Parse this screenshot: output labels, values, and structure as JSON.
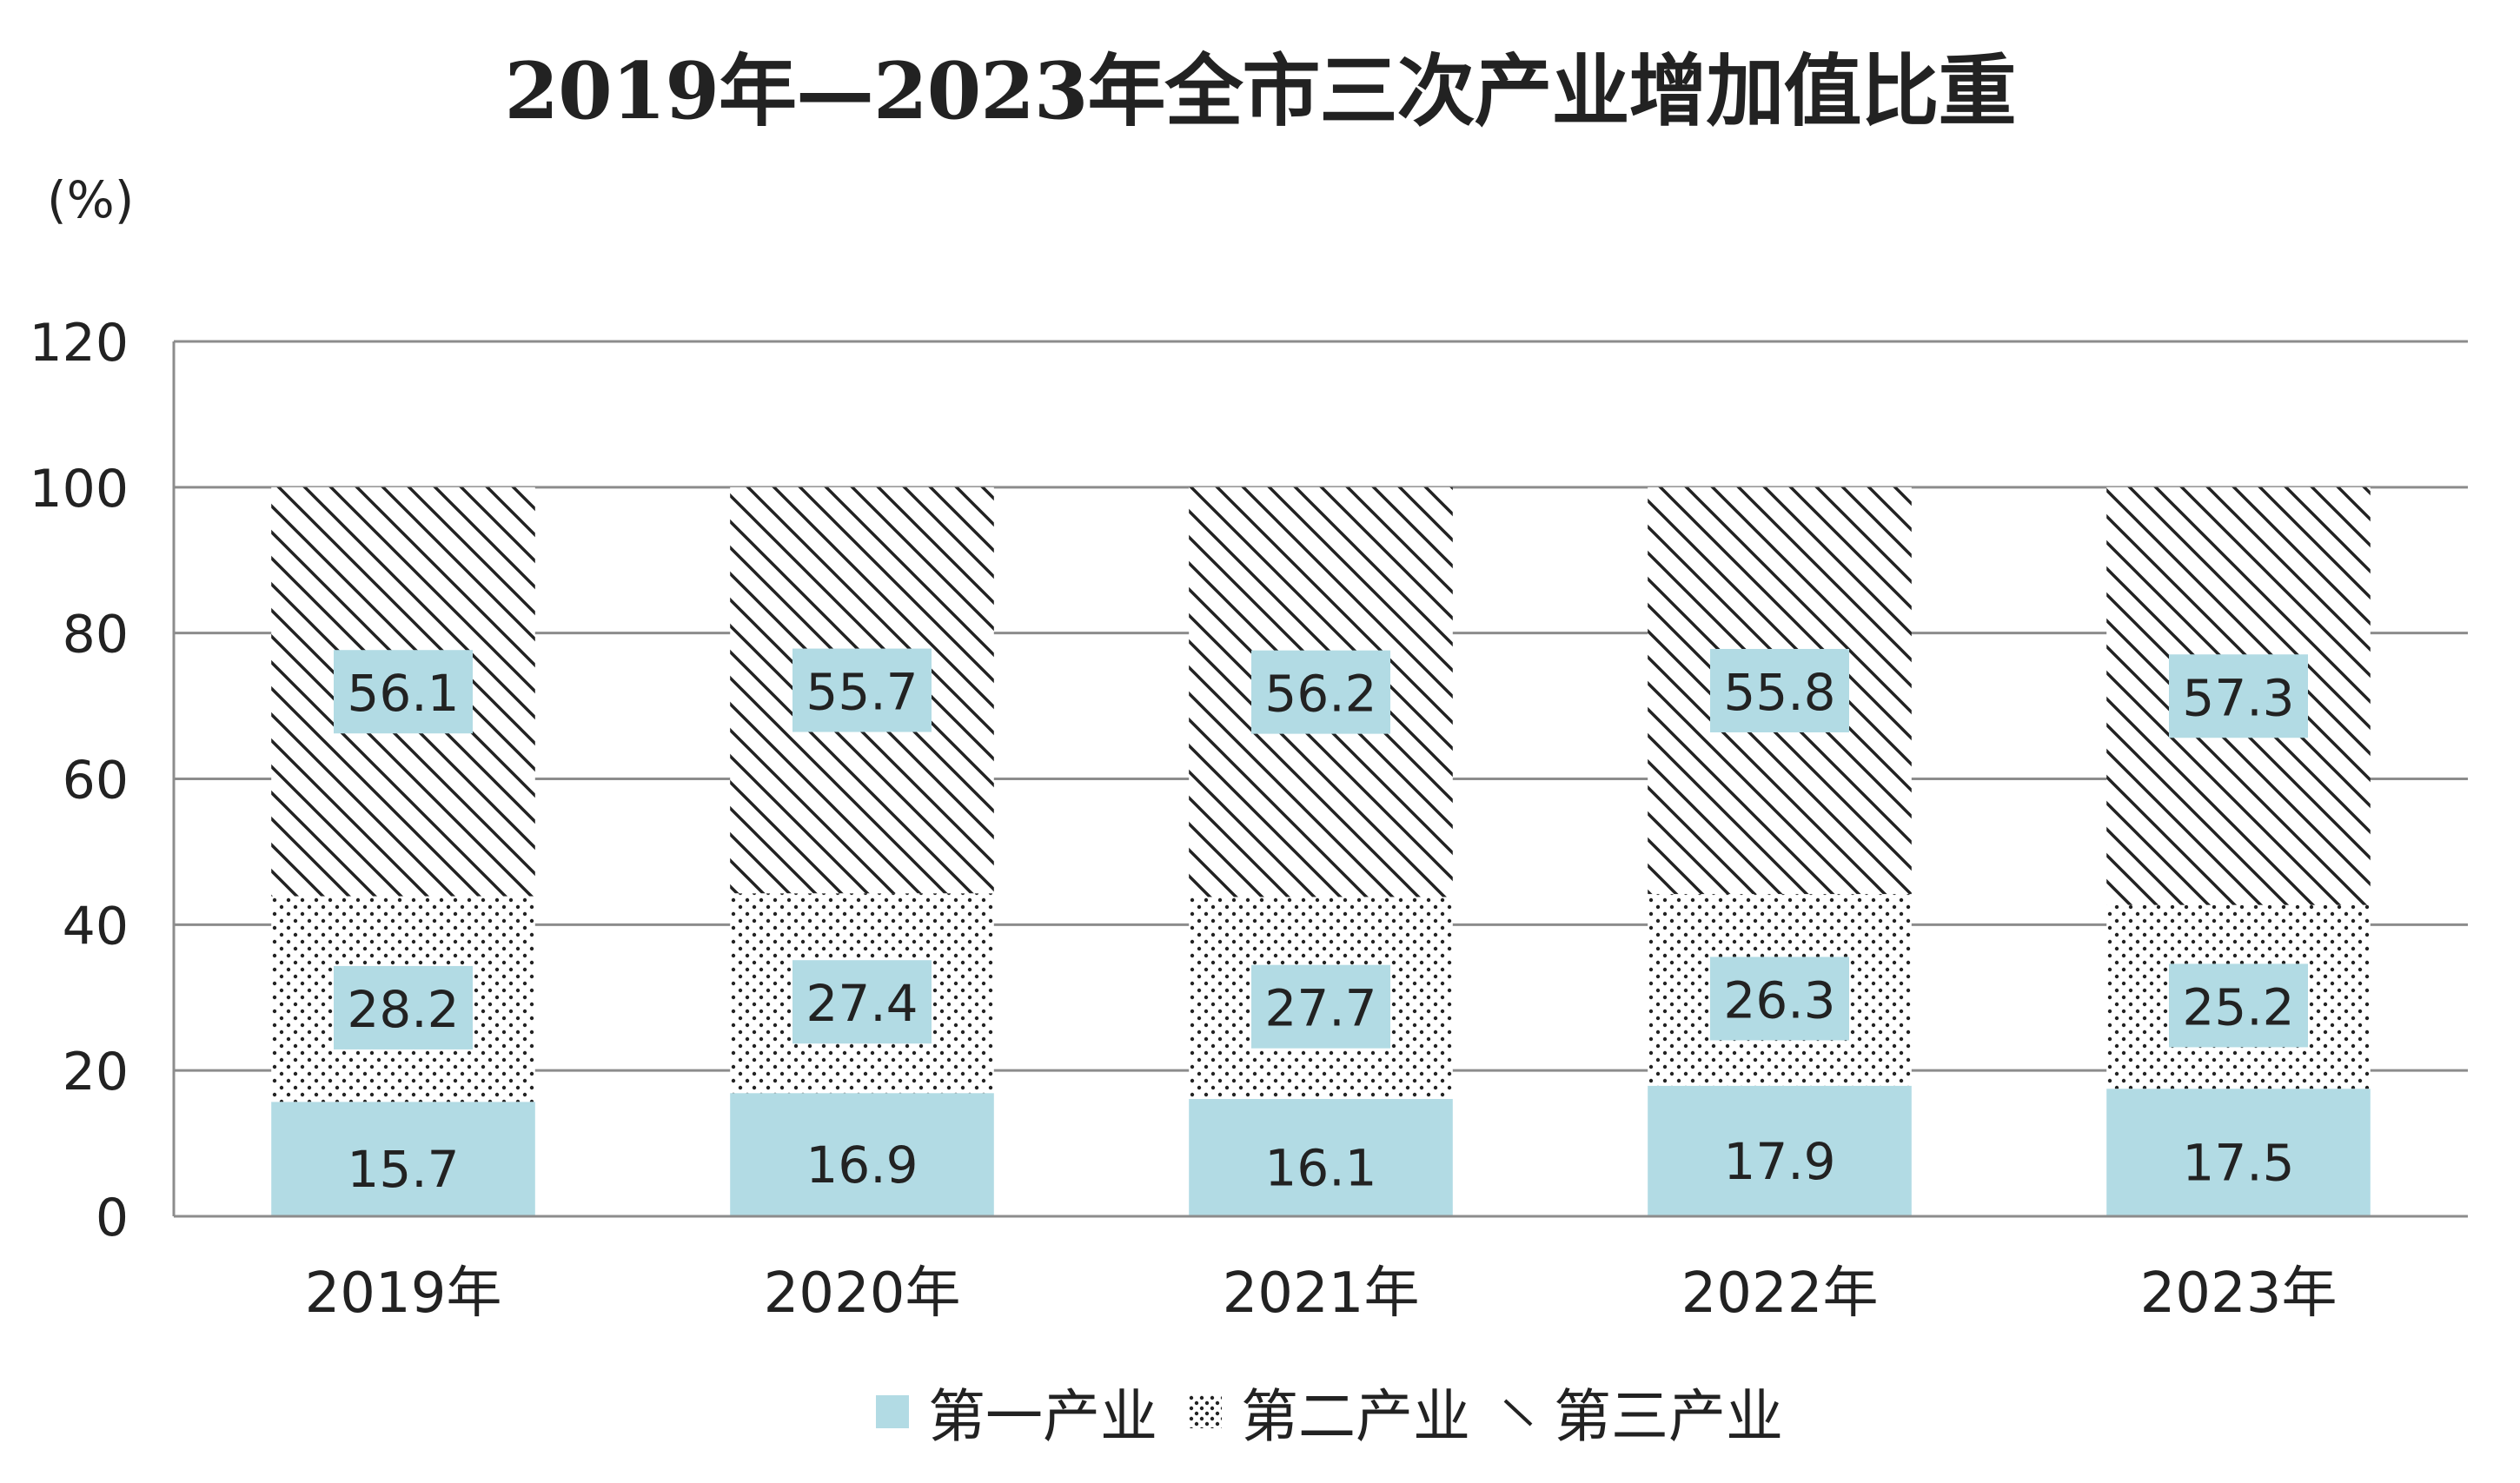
{
  "chart_data": {
    "type": "bar",
    "stacked": true,
    "title": "2019年—2023年全市三次产业增加值比重",
    "y_unit": "(%)",
    "categories": [
      "2019年",
      "2020年",
      "2021年",
      "2022年",
      "2023年"
    ],
    "series": [
      {
        "name": "第一产业",
        "values": [
          15.7,
          16.9,
          16.1,
          17.9,
          17.5
        ],
        "fill": "solid",
        "color": "#b2dbe4"
      },
      {
        "name": "第二产业",
        "values": [
          28.2,
          27.4,
          27.7,
          26.3,
          25.2
        ],
        "fill": "dots",
        "color": "#222222"
      },
      {
        "name": "第三产业",
        "values": [
          56.1,
          55.7,
          56.2,
          55.8,
          57.3
        ],
        "fill": "hatch",
        "color": "#222222"
      }
    ],
    "ylim": [
      0,
      120
    ],
    "yticks": [
      0,
      20,
      40,
      60,
      80,
      100,
      120
    ],
    "grid": true,
    "legend_position": "bottom",
    "label_box_color": "#b2dbe4"
  }
}
